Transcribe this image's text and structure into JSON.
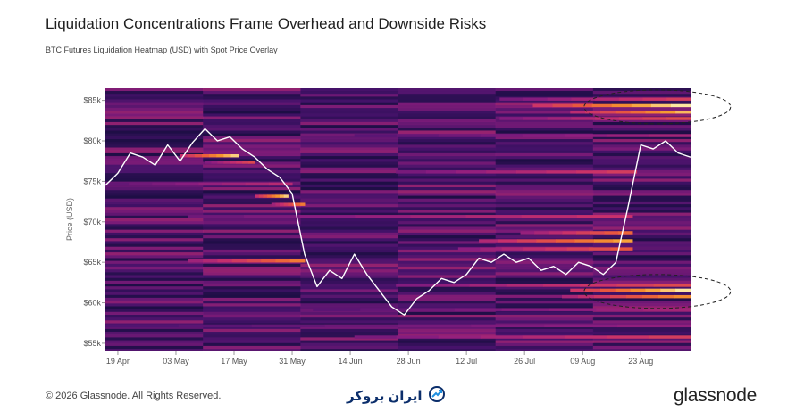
{
  "chart_data": {
    "type": "heatmap",
    "title": "Liquidation Concentrations Frame Overhead and Downside Risks",
    "subtitle": "BTC Futures Liquidation Heatmap (USD) with Spot Price Overlay",
    "ylabel": "Price (USD)",
    "xlabel": "",
    "y_ticks": [
      "$55k",
      "$60k",
      "$65k",
      "$70k",
      "$75k",
      "$80k",
      "$85k"
    ],
    "y_tick_values": [
      55,
      60,
      65,
      70,
      75,
      80,
      85
    ],
    "ylim": [
      54,
      86.5
    ],
    "x_ticks": [
      "19 Apr",
      "03 May",
      "17 May",
      "31 May",
      "14 Jun",
      "28 Jun",
      "12 Jul",
      "26 Jul",
      "09 Aug",
      "23 Aug"
    ],
    "x_tick_days": [
      3,
      17,
      31,
      45,
      59,
      73,
      87,
      101,
      115,
      129
    ],
    "xlim_days": [
      0,
      141
    ],
    "colormap": [
      "#1e0e45",
      "#4b1370",
      "#8b1d80",
      "#c8306c",
      "#ea5a3c",
      "#f79a2e",
      "#fde6a0"
    ],
    "spot_price_color": "#ffffff",
    "spot_price": {
      "days": [
        0,
        3,
        6,
        9,
        12,
        15,
        18,
        21,
        24,
        27,
        30,
        33,
        36,
        39,
        42,
        45,
        48,
        51,
        54,
        57,
        60,
        63,
        66,
        69,
        72,
        75,
        78,
        81,
        84,
        87,
        90,
        93,
        96,
        99,
        102,
        105,
        108,
        111,
        114,
        117,
        120,
        123,
        126,
        129,
        132,
        135,
        138,
        141
      ],
      "values": [
        74.5,
        76,
        78.5,
        78,
        77,
        79.5,
        77.5,
        79.8,
        81.5,
        80,
        80.5,
        79,
        78,
        76.5,
        75.5,
        73.5,
        66,
        62,
        64,
        63,
        66,
        63.5,
        61.5,
        59.5,
        58.5,
        60.5,
        61.5,
        63,
        62.5,
        63.5,
        65.5,
        65,
        66,
        65,
        65.5,
        64,
        64.5,
        63.5,
        65,
        64.5,
        63.5,
        65,
        72,
        79.5,
        79,
        80,
        78.5,
        78
      ]
    },
    "liquidation_bands": [
      {
        "level": 84.2,
        "start": 103,
        "end": 141,
        "intensity": 1.0
      },
      {
        "level": 83.4,
        "start": 112,
        "end": 141,
        "intensity": 0.9
      },
      {
        "level": 85.0,
        "start": 95,
        "end": 141,
        "intensity": 0.55
      },
      {
        "level": 82.6,
        "start": 95,
        "end": 141,
        "intensity": 0.6
      },
      {
        "level": 80.5,
        "start": 60,
        "end": 141,
        "intensity": 0.4
      },
      {
        "level": 78.0,
        "start": 18,
        "end": 32,
        "intensity": 0.95
      },
      {
        "level": 77.2,
        "start": 24,
        "end": 36,
        "intensity": 0.6
      },
      {
        "level": 76.0,
        "start": 70,
        "end": 128,
        "intensity": 0.55
      },
      {
        "level": 74.5,
        "start": 0,
        "end": 45,
        "intensity": 0.45
      },
      {
        "level": 73.0,
        "start": 36,
        "end": 44,
        "intensity": 0.95
      },
      {
        "level": 72.0,
        "start": 40,
        "end": 48,
        "intensity": 0.75
      },
      {
        "level": 70.5,
        "start": 20,
        "end": 127,
        "intensity": 0.5
      },
      {
        "level": 68.5,
        "start": 100,
        "end": 127,
        "intensity": 0.7
      },
      {
        "level": 67.5,
        "start": 90,
        "end": 127,
        "intensity": 0.85
      },
      {
        "level": 66.5,
        "start": 85,
        "end": 127,
        "intensity": 0.65
      },
      {
        "level": 65.0,
        "start": 20,
        "end": 48,
        "intensity": 0.75
      },
      {
        "level": 62.0,
        "start": 70,
        "end": 141,
        "intensity": 0.6
      },
      {
        "level": 61.4,
        "start": 112,
        "end": 141,
        "intensity": 1.0
      },
      {
        "level": 60.6,
        "start": 110,
        "end": 141,
        "intensity": 0.8
      },
      {
        "level": 59.0,
        "start": 50,
        "end": 141,
        "intensity": 0.4
      },
      {
        "level": 57.0,
        "start": 0,
        "end": 141,
        "intensity": 0.35
      },
      {
        "level": 55.6,
        "start": 60,
        "end": 141,
        "intensity": 0.55
      }
    ],
    "annotations": [
      {
        "type": "dashed-ellipse",
        "center_day": 133,
        "center_level": 84.2
      },
      {
        "type": "dashed-ellipse",
        "center_day": 133,
        "center_level": 61.4
      }
    ]
  },
  "footer": {
    "copyright": "© 2026 Glassnode. All Rights Reserved.",
    "center_logo_text": "ایران بروکر",
    "brand": "glassnode"
  }
}
